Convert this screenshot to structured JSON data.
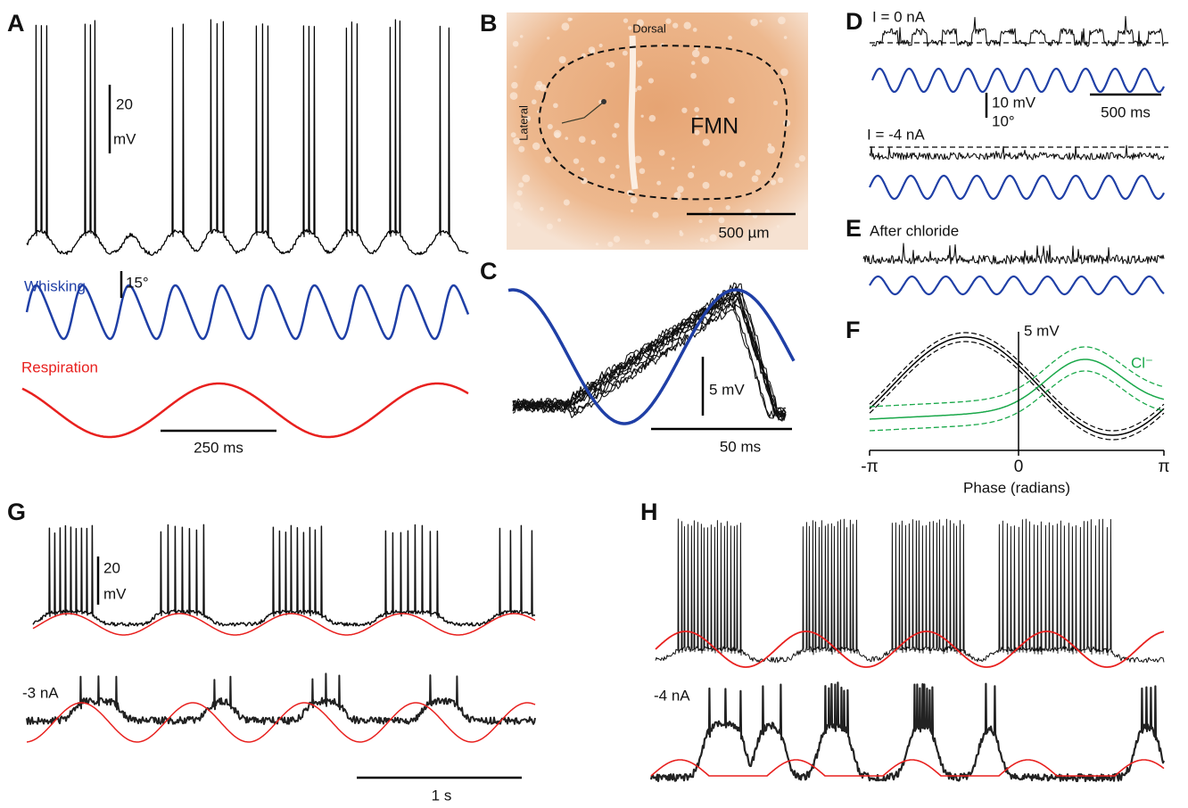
{
  "panels": {
    "A": {
      "label": "A",
      "v_scale": "20",
      "v_unit": "mV",
      "whisking": "Whisking",
      "whisk_scale": "15°",
      "respiration": "Respiration",
      "t_scale": "250 ms"
    },
    "B": {
      "label": "B",
      "dorsal": "Dorsal",
      "lateral": "Lateral",
      "region": "FMN",
      "scale": "500 µm"
    },
    "C": {
      "label": "C",
      "v_scale": "5 mV",
      "t_scale": "50 ms"
    },
    "D": {
      "label": "D",
      "cond1": "I = 0 nA",
      "v_scale": "10 mV",
      "deg_scale": "10°",
      "t_scale": "500 ms",
      "cond2": "I = -4 nA"
    },
    "E": {
      "label": "E",
      "cond": "After chloride"
    },
    "F": {
      "label": "F",
      "v_scale": "5 mV",
      "cl": "Cl⁻",
      "x_ticks": [
        "-π",
        "0",
        "π"
      ],
      "x_label": "Phase (radians)"
    },
    "G": {
      "label": "G",
      "v_scale": "20",
      "v_unit": "mV",
      "cond": "-3 nA",
      "t_scale": "1 s"
    },
    "H": {
      "label": "H",
      "cond": "-4 nA"
    }
  }
}
